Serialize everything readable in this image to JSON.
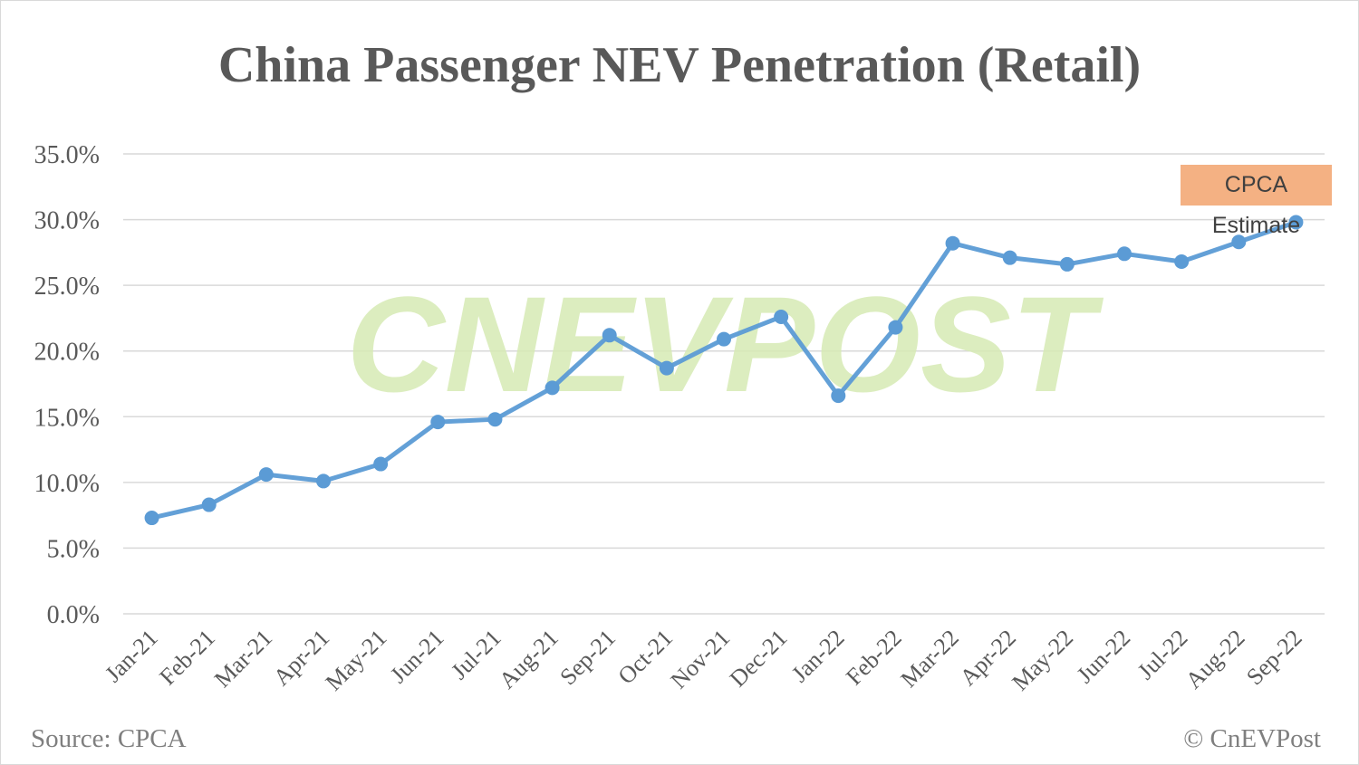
{
  "chart_data": {
    "type": "line",
    "title": "China Passenger NEV Penetration (Retail)",
    "categories": [
      "Jan-21",
      "Feb-21",
      "Mar-21",
      "Apr-21",
      "May-21",
      "Jun-21",
      "Jul-21",
      "Aug-21",
      "Sep-21",
      "Oct-21",
      "Nov-21",
      "Dec-21",
      "Jan-22",
      "Feb-22",
      "Mar-22",
      "Apr-22",
      "May-22",
      "Jun-22",
      "Jul-22",
      "Aug-22",
      "Sep-22"
    ],
    "series": [
      {
        "values": [
          7.3,
          8.3,
          10.6,
          10.1,
          11.4,
          14.6,
          14.8,
          17.2,
          21.2,
          18.7,
          20.9,
          22.6,
          16.6,
          21.8,
          28.2,
          27.1,
          26.6,
          27.4,
          26.8,
          28.3,
          29.8
        ],
        "color": "#5b9bd5"
      }
    ],
    "ylim": [
      0,
      35
    ],
    "yticks": [
      "0.0%",
      "5.0%",
      "10.0%",
      "15.0%",
      "20.0%",
      "25.0%",
      "30.0%",
      "35.0%"
    ],
    "grid": true,
    "annotation": "CPCA Estimate",
    "annotation_color": "#f4b183"
  },
  "source": "Source: CPCA",
  "copyright": "© CnEVPost",
  "watermark": "CNEVPOST"
}
